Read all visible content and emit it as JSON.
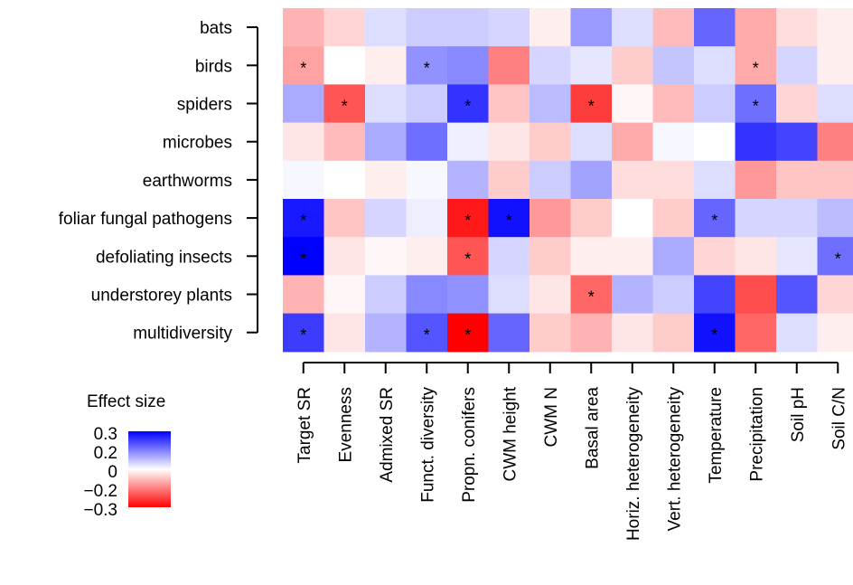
{
  "chart_data": {
    "type": "heatmap",
    "rows": [
      "bats",
      "birds",
      "spiders",
      "microbes",
      "earthworms",
      "foliar fungal pathogens",
      "defoliating insects",
      "understorey plants",
      "multidiversity"
    ],
    "columns": [
      "Target SR",
      "Evenness",
      "Admixed SR",
      "Funct. diversity",
      "Propn. conifers",
      "CWM height",
      "CWM N",
      "Basal area",
      "Horiz. heterogeneity",
      "Vert. heterogeneity",
      "Temperature",
      "Precipitation",
      "Soil pH",
      "Soil C/N"
    ],
    "values": [
      [
        -0.09,
        -0.05,
        0.04,
        0.06,
        0.06,
        0.05,
        -0.02,
        0.12,
        0.04,
        -0.08,
        0.18,
        -0.1,
        -0.04,
        -0.02
      ],
      [
        -0.11,
        0.0,
        -0.02,
        0.13,
        0.14,
        -0.15,
        0.05,
        0.03,
        -0.06,
        0.07,
        0.04,
        -0.1,
        0.05,
        -0.02
      ],
      [
        0.1,
        -0.2,
        0.04,
        0.06,
        0.24,
        -0.07,
        0.08,
        -0.23,
        -0.01,
        -0.08,
        0.06,
        0.17,
        -0.05,
        0.04
      ],
      [
        -0.03,
        -0.08,
        0.1,
        0.17,
        0.02,
        -0.03,
        -0.06,
        0.04,
        -0.1,
        0.01,
        0.0,
        0.24,
        0.22,
        -0.15
      ],
      [
        0.01,
        0.0,
        -0.02,
        0.01,
        0.09,
        -0.06,
        0.06,
        0.11,
        -0.04,
        -0.04,
        0.04,
        -0.12,
        -0.07,
        -0.07
      ],
      [
        0.27,
        -0.07,
        0.05,
        0.02,
        -0.27,
        0.28,
        -0.12,
        -0.06,
        0.0,
        -0.06,
        0.18,
        0.05,
        0.05,
        0.08
      ],
      [
        0.3,
        -0.03,
        -0.01,
        -0.02,
        -0.2,
        0.05,
        -0.06,
        -0.02,
        -0.02,
        0.1,
        -0.05,
        -0.03,
        0.03,
        0.17
      ],
      [
        -0.09,
        -0.01,
        0.06,
        0.14,
        0.13,
        0.04,
        -0.03,
        -0.18,
        0.09,
        0.06,
        0.22,
        -0.21,
        0.2,
        -0.05
      ],
      [
        0.23,
        -0.03,
        0.09,
        0.2,
        -0.3,
        0.18,
        -0.06,
        -0.09,
        -0.03,
        -0.06,
        0.28,
        -0.18,
        0.04,
        -0.02
      ]
    ],
    "significant": [
      [
        false,
        false,
        false,
        false,
        false,
        false,
        false,
        false,
        false,
        false,
        false,
        false,
        false,
        false
      ],
      [
        true,
        false,
        false,
        true,
        false,
        false,
        false,
        false,
        false,
        false,
        false,
        true,
        false,
        false
      ],
      [
        false,
        true,
        false,
        false,
        true,
        false,
        false,
        true,
        false,
        false,
        false,
        true,
        false,
        false
      ],
      [
        false,
        false,
        false,
        false,
        false,
        false,
        false,
        false,
        false,
        false,
        false,
        false,
        false,
        false
      ],
      [
        false,
        false,
        false,
        false,
        false,
        false,
        false,
        false,
        false,
        false,
        false,
        false,
        false,
        false
      ],
      [
        true,
        false,
        false,
        false,
        true,
        true,
        false,
        false,
        false,
        false,
        true,
        false,
        false,
        false
      ],
      [
        true,
        false,
        false,
        false,
        true,
        false,
        false,
        false,
        false,
        false,
        false,
        false,
        false,
        true
      ],
      [
        false,
        false,
        false,
        false,
        false,
        false,
        false,
        true,
        false,
        false,
        false,
        false,
        false,
        false
      ],
      [
        true,
        false,
        false,
        true,
        true,
        false,
        false,
        false,
        false,
        false,
        true,
        false,
        false,
        false
      ]
    ],
    "significance_marker": "*",
    "color_scale": {
      "min": -0.3,
      "max": 0.3,
      "neg_color": "#ff0000",
      "mid_color": "#ffffff",
      "pos_color": "#0000ff"
    },
    "legend": {
      "title": "Effect size",
      "ticks": [
        "0.3",
        "0.2",
        "0",
        "−0.2",
        "−0.3"
      ],
      "placement": "bottom-left"
    }
  }
}
